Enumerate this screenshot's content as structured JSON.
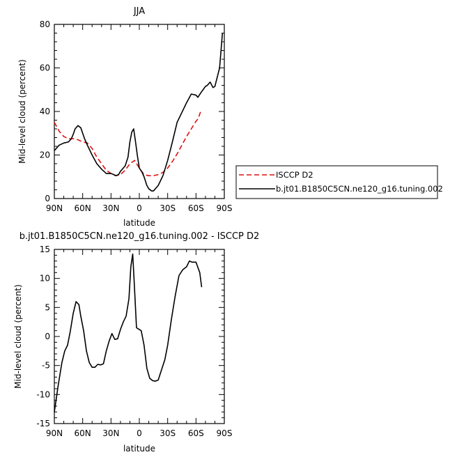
{
  "chart_data": [
    {
      "type": "line",
      "title": "JJA",
      "xlabel": "latitude",
      "ylabel": "Mid-level cloud (percent)",
      "xlim": [
        90,
        -90
      ],
      "ylim": [
        0,
        80
      ],
      "xticks": [
        90,
        60,
        30,
        0,
        -30,
        -60,
        -90
      ],
      "xtick_labels": [
        "90N",
        "60N",
        "30N",
        "0",
        "30S",
        "60S",
        "90S"
      ],
      "yticks": [
        0,
        20,
        40,
        60,
        80
      ],
      "ytick_labels": [
        "0",
        "20",
        "40",
        "60",
        "80"
      ],
      "legend_position": "right",
      "series": [
        {
          "name": "ISCCP D2",
          "color": "#dd1111",
          "dash": "dashed",
          "x": [
            90,
            85,
            80,
            75,
            70,
            65,
            60,
            55,
            50,
            45,
            40,
            35,
            30,
            25,
            20,
            15,
            10,
            5,
            0,
            -5,
            -10,
            -15,
            -20,
            -25,
            -30,
            -35,
            -40,
            -45,
            -50,
            -55,
            -60,
            -62,
            -65
          ],
          "y": [
            35,
            31,
            28.5,
            27.5,
            27.5,
            27,
            26,
            25.5,
            23,
            19,
            16,
            13,
            11.5,
            10.5,
            11,
            13,
            16,
            17.5,
            14,
            11,
            10.5,
            10.5,
            11,
            12,
            14,
            17,
            20.5,
            24.5,
            28.5,
            32,
            35.5,
            36.5,
            40
          ]
        },
        {
          "name": "b.jt01.B1850C5CN.ne120_g16.tuning.002",
          "color": "#000000",
          "dash": "solid",
          "x": [
            90,
            85,
            80,
            75,
            72,
            70,
            68,
            65,
            62,
            60,
            58,
            55,
            50,
            45,
            40,
            35,
            30,
            27,
            25,
            22,
            20,
            17,
            15,
            12,
            10,
            8,
            6,
            4,
            2,
            0,
            -3,
            -5,
            -8,
            -10,
            -13,
            -15,
            -20,
            -25,
            -30,
            -35,
            -40,
            -45,
            -50,
            -55,
            -60,
            -62,
            -65,
            -70,
            -72,
            -75,
            -78,
            -80,
            -85,
            -88
          ],
          "y": [
            22,
            24.5,
            25.5,
            26,
            27.5,
            29.5,
            32,
            33.5,
            32.5,
            30,
            27.5,
            24.5,
            20,
            16,
            13.5,
            11.5,
            11.5,
            11,
            10.5,
            11,
            12.5,
            14,
            15,
            19,
            26,
            30.5,
            32,
            26,
            19.5,
            14,
            12,
            10,
            6,
            4.5,
            3.5,
            3.5,
            6,
            10.5,
            17.5,
            26,
            35,
            39.5,
            44,
            48,
            47.5,
            46.5,
            48.5,
            51.5,
            52,
            53.5,
            51,
            51.5,
            60,
            76
          ]
        }
      ]
    },
    {
      "type": "line",
      "title": "b.jt01.B1850C5CN.ne120_g16.tuning.002 - ISCCP D2",
      "xlabel": "latitude",
      "ylabel": "Mid-level cloud (percent)",
      "xlim": [
        90,
        -90
      ],
      "ylim": [
        -15,
        15
      ],
      "xticks": [
        90,
        60,
        30,
        0,
        -30,
        -60,
        -90
      ],
      "xtick_labels": [
        "90N",
        "60N",
        "30N",
        "0",
        "30S",
        "60S",
        "90S"
      ],
      "yticks": [
        -15,
        -10,
        -5,
        0,
        5,
        10,
        15
      ],
      "ytick_labels": [
        "-15",
        "-10",
        "-5",
        "0",
        "5",
        "10",
        "15"
      ],
      "series": [
        {
          "name": "",
          "color": "#000000",
          "dash": "solid",
          "x": [
            90,
            86,
            82,
            79,
            76,
            73,
            70,
            67,
            64,
            62,
            59,
            56,
            53,
            50,
            47,
            44,
            41,
            38,
            35,
            32,
            29,
            26,
            23,
            20,
            17,
            14,
            11,
            9,
            7,
            5,
            3,
            1,
            -2,
            -5,
            -8,
            -11,
            -14,
            -17,
            -20,
            -23,
            -27,
            -30,
            -34,
            -38,
            -42,
            -46,
            -50,
            -53,
            -56,
            -60,
            -64,
            -66
          ],
          "y": [
            -13,
            -8.5,
            -4.5,
            -2.5,
            -1.5,
            1,
            4,
            6,
            5.5,
            3.5,
            1,
            -2.5,
            -4.5,
            -5.3,
            -5.3,
            -4.8,
            -4.9,
            -4.7,
            -2.5,
            -0.8,
            0.5,
            -0.5,
            -0.4,
            1.2,
            2.5,
            3.5,
            6.5,
            12,
            14.2,
            8,
            1.5,
            1.3,
            1,
            -1.5,
            -5.5,
            -7.2,
            -7.6,
            -7.7,
            -7.5,
            -6,
            -4,
            -1.5,
            3,
            7,
            10.5,
            11.5,
            12,
            13,
            12.8,
            12.8,
            11,
            8.5
          ]
        }
      ]
    }
  ]
}
